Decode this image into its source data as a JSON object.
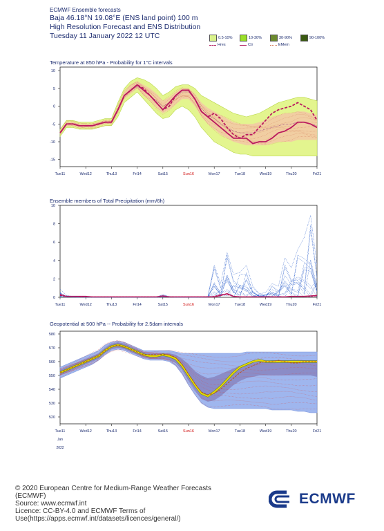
{
  "header": {
    "line1": "ECMWF Ensemble forecasts",
    "line2": "Baja 46.18°N 19.08°E (ENS land point) 100 m",
    "line3": "High Resolution Forecast and ENS Distribution",
    "line4": "Tuesday 11 January 2022 12 UTC"
  },
  "legend": {
    "items": [
      {
        "label": "0.5-10%",
        "color": "#d9f28b"
      },
      {
        "label": "10-30%",
        "color": "#9ae028"
      },
      {
        "label": "30-90%",
        "color": "#6b8a2e"
      },
      {
        "label": "90-100%",
        "color": "#3a5a12"
      }
    ],
    "lines": [
      {
        "label": "Hres",
        "color": "#b0155a",
        "style": "dashed"
      },
      {
        "label": "Ctr",
        "color": "#b0155a",
        "style": "solid"
      },
      {
        "label": "EMem",
        "color": "#d07050",
        "style": "dotted"
      }
    ]
  },
  "x_ticks": [
    "Tue11",
    "Wed12",
    "Thu13",
    "Fri14",
    "Sat15",
    "Sun16",
    "Mon17",
    "Tue18",
    "Wed19",
    "Thu20",
    "Fri21"
  ],
  "highlight_tick": "Sun16",
  "date_note": {
    "month": "Jan",
    "year": "2022"
  },
  "chart_data": [
    {
      "type": "line",
      "title": "Temperature at 850 hPa - Probability for 1°C intervals",
      "ylim": [
        -17,
        11
      ],
      "yticks": [
        -15,
        -10,
        -5,
        0,
        5,
        10
      ],
      "x": [
        0,
        0.25,
        0.5,
        0.75,
        1,
        1.25,
        1.5,
        1.75,
        2,
        2.25,
        2.5,
        2.75,
        3,
        3.25,
        3.5,
        3.75,
        4,
        4.25,
        4.5,
        4.75,
        5,
        5.25,
        5.5,
        5.75,
        6,
        6.25,
        6.5,
        6.75,
        7,
        7.25,
        7.5,
        7.75,
        8,
        8.25,
        8.5,
        8.75,
        9,
        9.25,
        9.5,
        9.75,
        10
      ],
      "series": [
        {
          "name": "Ctr",
          "values": [
            -7.5,
            -5,
            -5,
            -5.5,
            -5.5,
            -5.5,
            -5,
            -4.5,
            -4.5,
            -1,
            3,
            4.5,
            6,
            4.5,
            3,
            1,
            -1,
            1,
            3,
            4.5,
            4.5,
            2,
            -1.5,
            -3,
            -4.5,
            -6,
            -7.5,
            -9,
            -9,
            -9,
            -10.5,
            -10,
            -10,
            -9,
            -7.5,
            -7,
            -6,
            -4.5,
            -4.5,
            -5,
            -6
          ]
        },
        {
          "name": "Hres",
          "values": [
            -7.5,
            -5,
            -5,
            -5.5,
            -5.5,
            -5.5,
            -5,
            -4.5,
            -4.5,
            -1,
            3,
            4.5,
            6,
            5,
            3,
            1,
            -1,
            0,
            3,
            4.5,
            4.5,
            2,
            -1.5,
            -3,
            -2,
            -3.5,
            -6,
            -8,
            -9,
            -8,
            -8,
            -6,
            -4,
            -2,
            -1,
            -0.5,
            0,
            1,
            0,
            -1,
            -4
          ]
        },
        {
          "name": "EMem",
          "values": [
            -7.5,
            -5,
            -5,
            -5.5,
            -5.5,
            -5.5,
            -5,
            -4.5,
            -4.5,
            -1,
            3,
            4.5,
            5.5,
            4.5,
            3,
            1.5,
            0,
            1,
            2.5,
            4,
            4,
            2,
            -0.5,
            -2.5,
            -3.5,
            -5,
            -6,
            -7,
            -7.5,
            -7.5,
            -7.5,
            -7,
            -6.5,
            -6,
            -5.5,
            -5,
            -5,
            -4.5,
            -4.5,
            -5,
            -5.5
          ]
        }
      ],
      "band_outer": {
        "low": [
          -8.5,
          -6,
          -6,
          -6.5,
          -6.5,
          -6.5,
          -6,
          -5.5,
          -5.5,
          -3,
          1,
          2.5,
          4,
          2,
          0,
          -2,
          -3.5,
          -3,
          -1,
          0,
          -1,
          -3,
          -6,
          -8,
          -10,
          -11,
          -12,
          -13,
          -13.5,
          -13.5,
          -14,
          -14,
          -14,
          -14,
          -14,
          -14,
          -14,
          -14,
          -14,
          -14,
          -14
        ],
        "high": [
          -6.5,
          -4,
          -4,
          -4.5,
          -4.5,
          -4.5,
          -4,
          -3.5,
          -3.5,
          1,
          5,
          7,
          8,
          7.5,
          6.5,
          5,
          3,
          4,
          5.5,
          6,
          6,
          5,
          3,
          2,
          1,
          0,
          -1,
          -2,
          -2.5,
          -3,
          -2.5,
          -2,
          -1,
          0,
          1,
          1.5,
          2,
          2.5,
          2.5,
          2,
          1.5
        ]
      },
      "band_inner": {
        "low": [
          -8,
          -5.5,
          -5.5,
          -6,
          -6,
          -6,
          -5.5,
          -5,
          -5,
          -2,
          2,
          3.5,
          5,
          3,
          1.5,
          -0.5,
          -2,
          -1,
          0.5,
          2,
          2,
          0,
          -3,
          -5,
          -6.5,
          -8,
          -9,
          -10,
          -10.5,
          -11,
          -11,
          -11,
          -11,
          -10.5,
          -10,
          -10,
          -10,
          -9.5,
          -9.5,
          -9.5,
          -9.5
        ],
        "high": [
          -7,
          -4.5,
          -4.5,
          -5,
          -5,
          -5,
          -4.5,
          -4,
          -4,
          0,
          4,
          6,
          7,
          6,
          5,
          3.5,
          1.5,
          2.5,
          4,
          5,
          5,
          3.5,
          1,
          -0.5,
          -1.5,
          -2.5,
          -3.5,
          -4.5,
          -5,
          -5,
          -5,
          -4.5,
          -4,
          -3,
          -2.5,
          -2,
          -2,
          -1.5,
          -1.5,
          -2,
          -2.5
        ]
      }
    },
    {
      "type": "line",
      "title": "Ensemble members of Total Precipitation (mm/6h)",
      "ylim": [
        0,
        10
      ],
      "yticks": [
        0,
        2,
        4,
        6,
        8,
        10
      ],
      "x": [
        0,
        0.25,
        0.5,
        0.75,
        1,
        1.25,
        1.5,
        1.75,
        2,
        2.25,
        2.5,
        2.75,
        3,
        3.25,
        3.5,
        3.75,
        4,
        4.25,
        4.5,
        4.75,
        5,
        5.25,
        5.5,
        5.75,
        6,
        6.25,
        6.5,
        6.75,
        7,
        7.25,
        7.5,
        7.75,
        8,
        8.25,
        8.5,
        8.75,
        9,
        9.25,
        9.5,
        9.75,
        10
      ],
      "series": [
        {
          "name": "Ctr",
          "values": [
            0.3,
            0.1,
            0.1,
            0.1,
            0.1,
            0.05,
            0.05,
            0.05,
            0.05,
            0.05,
            0.05,
            0.05,
            0.05,
            0.05,
            0.05,
            0.05,
            0.15,
            0.05,
            0.05,
            0.05,
            0.05,
            0.05,
            0.05,
            0.05,
            0.05,
            0.2,
            0.4,
            0.1,
            0.05,
            0.05,
            0.05,
            0.05,
            0.05,
            0.05,
            0.05,
            0.05,
            0.1,
            0.1,
            0.1,
            0.15,
            0.2
          ]
        },
        {
          "name": "Hres",
          "values": [
            0.2,
            0.1,
            0.1,
            0.05,
            0.05,
            0.05,
            0.05,
            0.05,
            0.05,
            0.05,
            0.05,
            0.05,
            0.05,
            0.05,
            0.05,
            0.05,
            0.1,
            0.05,
            0.05,
            0.05,
            0.05,
            0.05,
            0.05,
            0.05,
            0.1,
            0.3,
            0.3,
            0.1,
            0.05,
            0.05,
            0.05,
            0.05,
            0.05,
            0.05,
            0.05,
            0.05,
            0.1,
            0.1,
            0.1,
            0.1,
            0.15
          ]
        }
      ],
      "members_max": [
        0.9,
        0.2,
        0.1,
        0.1,
        0.1,
        0.05,
        0.05,
        0.05,
        0.05,
        0.05,
        0.05,
        0.05,
        0.05,
        0.05,
        0.05,
        0.05,
        0.3,
        0.1,
        0.05,
        0.05,
        0.05,
        0.05,
        0.05,
        0.1,
        3.5,
        1.5,
        4.9,
        2.5,
        2.7,
        3.5,
        1.2,
        0.4,
        0.5,
        1.5,
        1.2,
        4.3,
        3.2,
        5.2,
        6.5,
        8.9,
        3.5
      ]
    },
    {
      "type": "line",
      "title": "Geopotential at 500 hPa -- Probability for 2.5dam intervals",
      "ylim": [
        515,
        582
      ],
      "yticks": [
        520,
        530,
        540,
        550,
        560,
        570,
        580
      ],
      "x": [
        0,
        0.25,
        0.5,
        0.75,
        1,
        1.25,
        1.5,
        1.75,
        2,
        2.25,
        2.5,
        2.75,
        3,
        3.25,
        3.5,
        3.75,
        4,
        4.25,
        4.5,
        4.75,
        5,
        5.25,
        5.5,
        5.75,
        6,
        6.25,
        6.5,
        6.75,
        7,
        7.25,
        7.5,
        7.75,
        8,
        8.25,
        8.5,
        8.75,
        9,
        9.25,
        9.5,
        9.75,
        10
      ],
      "series": [
        {
          "name": "Ctr",
          "values": [
            552,
            554,
            556,
            558,
            560,
            562,
            564,
            568,
            571,
            572,
            571,
            569,
            567,
            565,
            564,
            564,
            565,
            564,
            562,
            557,
            550,
            543,
            537,
            535,
            538,
            542,
            547,
            552,
            556,
            558,
            560,
            561,
            560,
            560,
            560,
            560,
            560,
            560,
            560,
            560,
            560
          ]
        },
        {
          "name": "Hres",
          "values": [
            552,
            554,
            556,
            558,
            560,
            562,
            564,
            568,
            571,
            572,
            571,
            569,
            567,
            565,
            565,
            565,
            565,
            565,
            563,
            558,
            551,
            544,
            538,
            536,
            537,
            540,
            544,
            548,
            552,
            555,
            557,
            559,
            560,
            560,
            561,
            560,
            559,
            559,
            560,
            560,
            560
          ]
        }
      ],
      "band_outer": {
        "low": [
          548,
          550,
          552,
          554,
          556,
          558,
          561,
          565,
          568,
          569,
          568,
          566,
          564,
          562,
          561,
          561,
          561,
          560,
          557,
          551,
          543,
          536,
          530,
          527,
          526,
          526,
          526,
          526,
          526,
          526,
          526,
          526,
          526,
          525,
          525,
          525,
          525,
          524,
          524,
          523,
          523
        ],
        "high": [
          556,
          558,
          560,
          562,
          564,
          566,
          568,
          572,
          574,
          575,
          574,
          572,
          570,
          568,
          568,
          568,
          568,
          568,
          567,
          566,
          566,
          566,
          566,
          566,
          566,
          566,
          566,
          566,
          566,
          567,
          567,
          567,
          567,
          567,
          567,
          567,
          567,
          567,
          567,
          567,
          567
        ]
      },
      "band_inner": {
        "low": [
          550,
          552,
          554,
          556,
          558,
          560,
          562,
          566,
          569,
          570,
          569,
          567,
          565,
          563,
          562,
          562,
          562,
          561,
          559,
          554,
          546,
          539,
          533,
          531,
          532,
          535,
          539,
          543,
          546,
          548,
          549,
          550,
          550,
          550,
          550,
          550,
          550,
          550,
          550,
          550,
          549
        ],
        "high": [
          554,
          556,
          558,
          560,
          562,
          564,
          566,
          570,
          573,
          574,
          573,
          571,
          569,
          567,
          566,
          566,
          566,
          566,
          565,
          562,
          558,
          553,
          550,
          548,
          549,
          551,
          553,
          555,
          557,
          558,
          559,
          560,
          560,
          561,
          561,
          561,
          561,
          561,
          561,
          561,
          561
        ]
      }
    }
  ],
  "footer": {
    "l1": "© 2020 European Centre for Medium-Range Weather Forecasts",
    "l2": "(ECMWF)",
    "l3": "Source: www.ecmwf.int",
    "l4": "Licence: CC-BY-4.0 and ECMWF Terms of",
    "l5": "Use(https://apps.ecmwf.int/datasets/licences/general/)",
    "logo": "ECMWF"
  },
  "colors": {
    "temp_outer": "#e3f58f",
    "temp_inner": "#f3c7a6",
    "ens_line": "#ba1a5f",
    "geo_outer": "#9fb6ee",
    "geo_inner": "#7a6aa8",
    "geo_ctr": "#e8d800",
    "precip_members": "#3a6ad0"
  }
}
